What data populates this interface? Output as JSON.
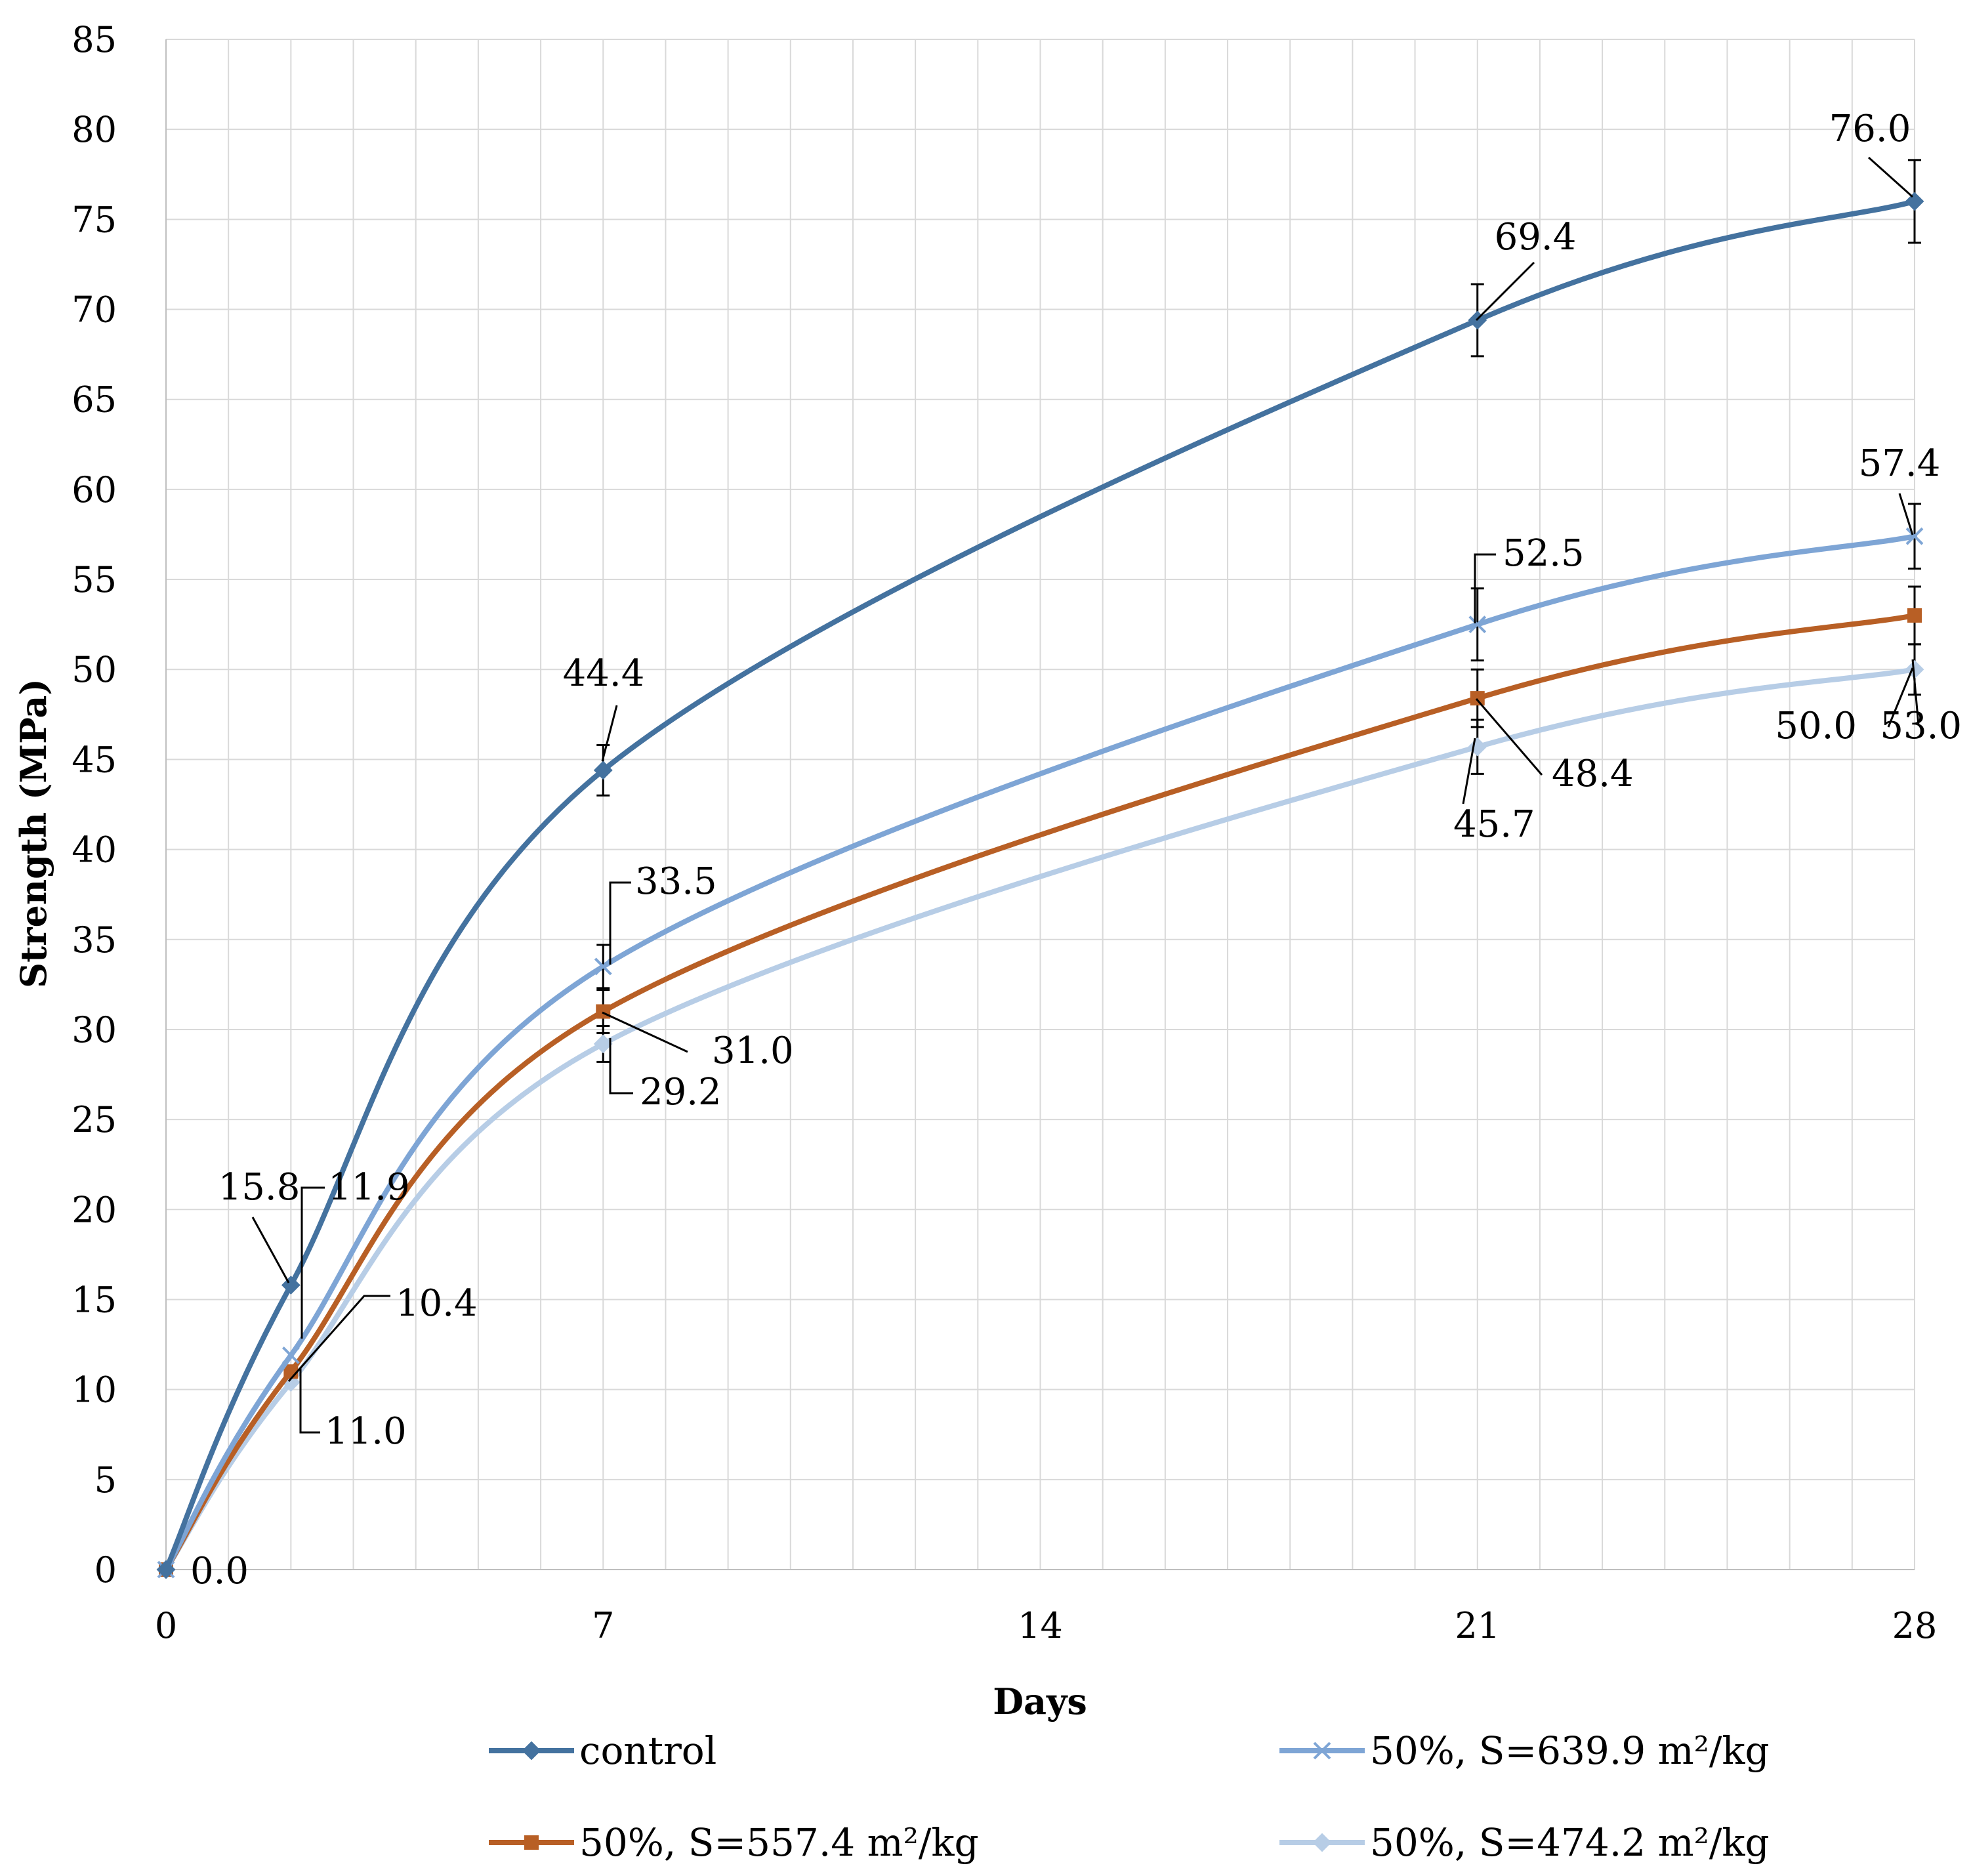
{
  "chart_data": {
    "type": "line",
    "title": "",
    "xlabel": "Days",
    "ylabel": "Strength (MPa)",
    "xlim": [
      0,
      28
    ],
    "ylim": [
      0,
      85
    ],
    "xticks": [
      0,
      7,
      14,
      21,
      28
    ],
    "yticks": [
      0,
      5,
      10,
      15,
      20,
      25,
      30,
      35,
      40,
      45,
      50,
      55,
      60,
      65,
      70,
      75,
      80,
      85
    ],
    "grid": true,
    "legend_position": "bottom",
    "series": [
      {
        "name": "control",
        "color": "#44729f",
        "marker": "diamond",
        "x": [
          0,
          2,
          7,
          21,
          28
        ],
        "y": [
          0.0,
          15.8,
          44.4,
          69.4,
          76.0
        ],
        "labels": [
          "0.0",
          "15.8",
          "44.4",
          "69.4",
          "76.0"
        ]
      },
      {
        "name": "50%, S=639.9 m²/kg",
        "color": "#7ea5d5",
        "marker": "x",
        "x": [
          0,
          2,
          7,
          21,
          28
        ],
        "y": [
          0.0,
          11.9,
          33.5,
          52.5,
          57.4
        ],
        "labels": [
          "0.0",
          "11.9",
          "33.5",
          "52.5",
          "57.4"
        ]
      },
      {
        "name": "50%, S=557.4 m²/kg",
        "color": "#b85f25",
        "marker": "square",
        "x": [
          0,
          2,
          7,
          21,
          28
        ],
        "y": [
          0.0,
          11.0,
          31.0,
          48.4,
          53.0
        ],
        "labels": [
          "0.0",
          "11.0",
          "31.0",
          "48.4",
          "53.0"
        ]
      },
      {
        "name": "50%, S=474.2 m²/kg",
        "color": "#b7cde6",
        "marker": "diamond",
        "x": [
          0,
          2,
          7,
          21,
          28
        ],
        "y": [
          0.0,
          10.4,
          29.2,
          45.7,
          50.0
        ],
        "labels": [
          "0.0",
          "10.4",
          "29.2",
          "45.7",
          "50.0"
        ]
      }
    ]
  }
}
